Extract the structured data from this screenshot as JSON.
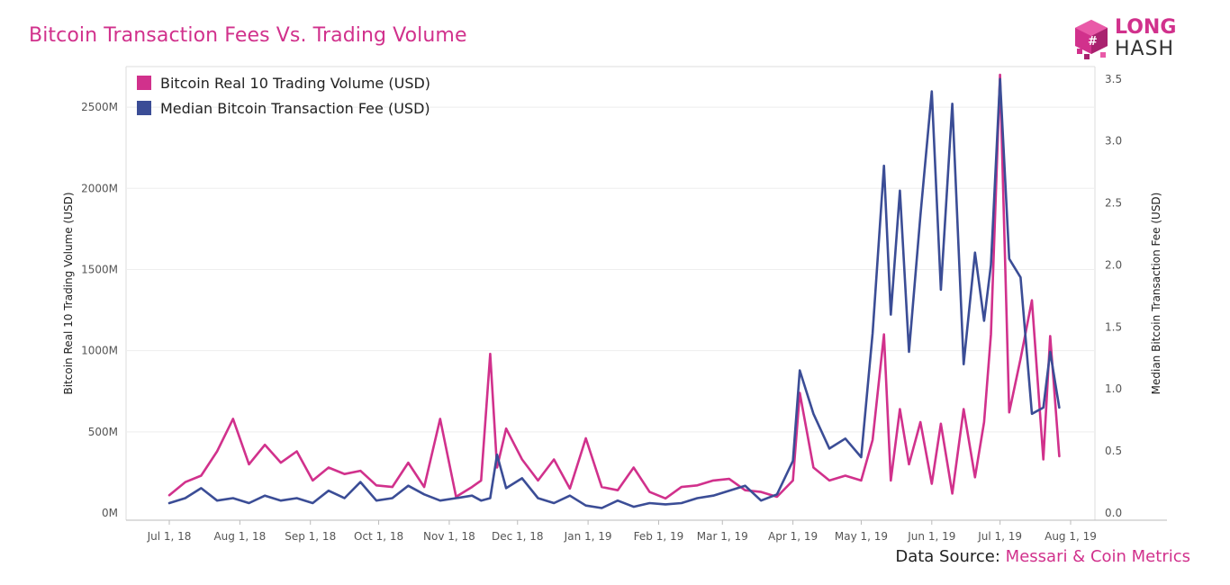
{
  "title": "Bitcoin Transaction Fees Vs. Trading Volume",
  "logo": {
    "line1": "LONG",
    "line2": "HASH"
  },
  "source": {
    "prefix": "Data Source:",
    "highlight": "Messari & Coin Metrics"
  },
  "colors": {
    "volume": "#d1318c",
    "fee": "#3b4d96",
    "title": "#d1318c"
  },
  "chart_data": {
    "type": "line",
    "xlabel": "",
    "ylabel_left": "Bitcoin Real 10 Trading Volume (USD)",
    "ylabel_right": "Median Bitcoin Transaction Fee (USD)",
    "x_ticks": [
      "Jul 1, 18",
      "Aug 1, 18",
      "Sep 1, 18",
      "Oct 1, 18",
      "Nov 1, 18",
      "Dec 1, 18",
      "Jan 1, 19",
      "Feb 1, 19",
      "Mar 1, 19",
      "Apr 1, 19",
      "May 1, 19",
      "Jun 1, 19",
      "Jul 1, 19",
      "Aug 1, 19"
    ],
    "y_left_ticks": [
      "0M",
      "500M",
      "1000M",
      "1500M",
      "2000M",
      "2500M"
    ],
    "y_left_ticks_values": [
      0,
      500,
      1000,
      1500,
      2000,
      2500
    ],
    "y_right_ticks": [
      "0.0",
      "0.5",
      "1.0",
      "1.5",
      "2.0",
      "2.5",
      "3.0",
      "3.5"
    ],
    "y_right_ticks_values": [
      0,
      0.5,
      1.0,
      1.5,
      2.0,
      2.5,
      3.0,
      3.5
    ],
    "ylim_left": [
      0,
      2750
    ],
    "ylim_right": [
      0,
      3.6
    ],
    "grid": true,
    "legend_position": "top-left",
    "series": [
      {
        "name": "Bitcoin Real 10 Trading Volume (USD)",
        "axis": "left",
        "color": "#d1318c",
        "x": [
          "2018-07-01",
          "2018-07-08",
          "2018-07-15",
          "2018-07-22",
          "2018-07-29",
          "2018-08-05",
          "2018-08-12",
          "2018-08-19",
          "2018-08-26",
          "2018-09-02",
          "2018-09-09",
          "2018-09-16",
          "2018-09-23",
          "2018-09-30",
          "2018-10-07",
          "2018-10-14",
          "2018-10-21",
          "2018-10-28",
          "2018-11-04",
          "2018-11-11",
          "2018-11-15",
          "2018-11-19",
          "2018-11-22",
          "2018-11-26",
          "2018-12-03",
          "2018-12-10",
          "2018-12-17",
          "2018-12-24",
          "2018-12-31",
          "2019-01-07",
          "2019-01-14",
          "2019-01-21",
          "2019-01-28",
          "2019-02-04",
          "2019-02-11",
          "2019-02-18",
          "2019-02-25",
          "2019-03-04",
          "2019-03-11",
          "2019-03-18",
          "2019-03-25",
          "2019-04-01",
          "2019-04-04",
          "2019-04-10",
          "2019-04-17",
          "2019-04-24",
          "2019-05-01",
          "2019-05-06",
          "2019-05-11",
          "2019-05-14",
          "2019-05-18",
          "2019-05-22",
          "2019-05-27",
          "2019-06-01",
          "2019-06-05",
          "2019-06-10",
          "2019-06-15",
          "2019-06-20",
          "2019-06-24",
          "2019-06-27",
          "2019-07-01",
          "2019-07-05",
          "2019-07-10",
          "2019-07-15",
          "2019-07-20",
          "2019-07-23",
          "2019-07-27"
        ],
        "values": [
          110,
          190,
          230,
          380,
          580,
          300,
          420,
          310,
          380,
          200,
          280,
          240,
          260,
          170,
          160,
          310,
          160,
          580,
          100,
          160,
          200,
          980,
          280,
          520,
          330,
          200,
          330,
          150,
          460,
          160,
          140,
          280,
          130,
          90,
          160,
          170,
          200,
          210,
          140,
          130,
          100,
          200,
          740,
          280,
          200,
          230,
          200,
          450,
          1100,
          200,
          640,
          300,
          560,
          180,
          550,
          120,
          640,
          220,
          560,
          1100,
          2700,
          620,
          950,
          1310,
          330,
          1090,
          350
        ],
        "approximate": true
      },
      {
        "name": "Median Bitcoin Transaction Fee (USD)",
        "axis": "right",
        "color": "#3b4d96",
        "x": [
          "2018-07-01",
          "2018-07-08",
          "2018-07-15",
          "2018-07-22",
          "2018-07-29",
          "2018-08-05",
          "2018-08-12",
          "2018-08-19",
          "2018-08-26",
          "2018-09-02",
          "2018-09-09",
          "2018-09-16",
          "2018-09-23",
          "2018-09-30",
          "2018-10-07",
          "2018-10-14",
          "2018-10-21",
          "2018-10-28",
          "2018-11-04",
          "2018-11-11",
          "2018-11-15",
          "2018-11-19",
          "2018-11-22",
          "2018-11-26",
          "2018-12-03",
          "2018-12-10",
          "2018-12-17",
          "2018-12-24",
          "2018-12-31",
          "2019-01-07",
          "2019-01-14",
          "2019-01-21",
          "2019-01-28",
          "2019-02-04",
          "2019-02-11",
          "2019-02-18",
          "2019-02-25",
          "2019-03-04",
          "2019-03-11",
          "2019-03-18",
          "2019-03-25",
          "2019-04-01",
          "2019-04-04",
          "2019-04-10",
          "2019-04-17",
          "2019-04-24",
          "2019-05-01",
          "2019-05-06",
          "2019-05-11",
          "2019-05-14",
          "2019-05-18",
          "2019-05-22",
          "2019-05-27",
          "2019-06-01",
          "2019-06-05",
          "2019-06-10",
          "2019-06-15",
          "2019-06-20",
          "2019-06-24",
          "2019-06-27",
          "2019-07-01",
          "2019-07-05",
          "2019-07-10",
          "2019-07-15",
          "2019-07-20",
          "2019-07-23",
          "2019-07-27"
        ],
        "values": [
          0.08,
          0.12,
          0.2,
          0.1,
          0.12,
          0.08,
          0.14,
          0.1,
          0.12,
          0.08,
          0.18,
          0.12,
          0.25,
          0.1,
          0.12,
          0.22,
          0.15,
          0.1,
          0.12,
          0.14,
          0.1,
          0.12,
          0.47,
          0.2,
          0.28,
          0.12,
          0.08,
          0.14,
          0.06,
          0.04,
          0.1,
          0.05,
          0.08,
          0.07,
          0.08,
          0.12,
          0.14,
          0.18,
          0.22,
          0.1,
          0.15,
          0.42,
          1.15,
          0.8,
          0.52,
          0.6,
          0.45,
          1.45,
          2.8,
          1.6,
          2.6,
          1.3,
          2.4,
          3.4,
          1.8,
          3.3,
          1.2,
          2.1,
          1.55,
          2.0,
          3.5,
          2.05,
          1.9,
          0.8,
          0.85,
          1.3,
          0.85
        ],
        "approximate": true
      }
    ]
  }
}
